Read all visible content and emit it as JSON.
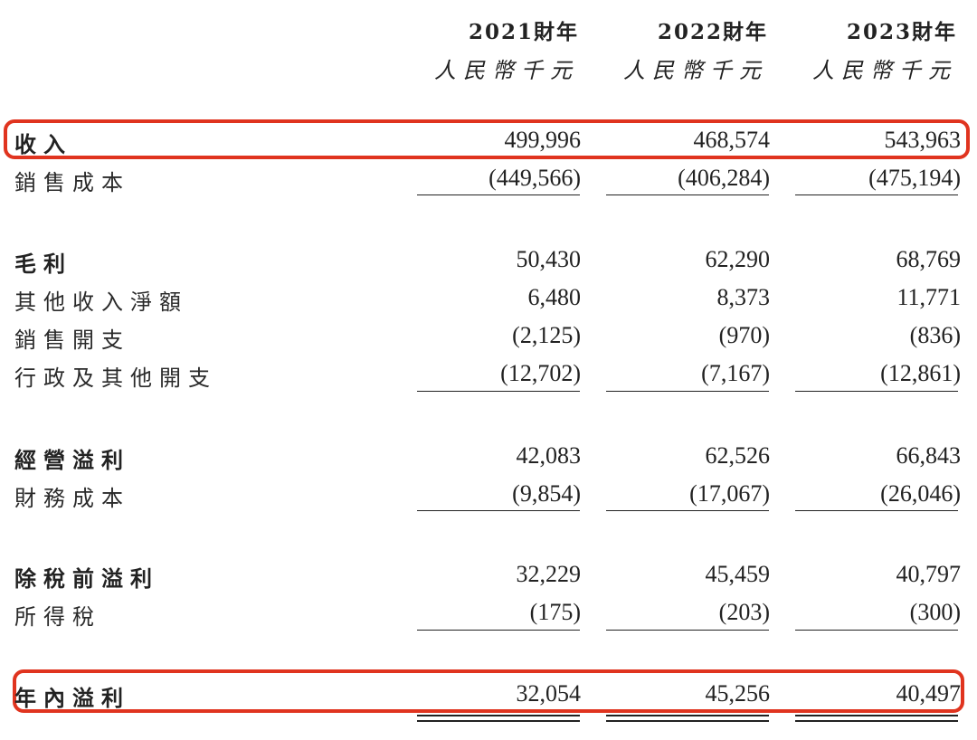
{
  "headers": [
    {
      "year": "2021財年",
      "unit": "人民幣千元"
    },
    {
      "year": "2022財年",
      "unit": "人民幣千元"
    },
    {
      "year": "2023財年",
      "unit": "人民幣千元"
    }
  ],
  "rows": [
    {
      "label": "收入",
      "values": [
        "499,996",
        "468,574",
        "543,963"
      ],
      "bold": true
    },
    {
      "label": "銷售成本",
      "values": [
        "(449,566)",
        "(406,284)",
        "(475,194)"
      ],
      "bold": false
    },
    {
      "label": "毛利",
      "values": [
        "50,430",
        "62,290",
        "68,769"
      ],
      "bold": true
    },
    {
      "label": "其他收入淨額",
      "values": [
        "6,480",
        "8,373",
        "11,771"
      ],
      "bold": false
    },
    {
      "label": "銷售開支",
      "values": [
        "(2,125)",
        "(970)",
        "(836)"
      ],
      "bold": false
    },
    {
      "label": "行政及其他開支",
      "values": [
        "(12,702)",
        "(7,167)",
        "(12,861)"
      ],
      "bold": false
    },
    {
      "label": "經營溢利",
      "values": [
        "42,083",
        "62,526",
        "66,843"
      ],
      "bold": true
    },
    {
      "label": "財務成本",
      "values": [
        "(9,854)",
        "(17,067)",
        "(26,046)"
      ],
      "bold": false
    },
    {
      "label": "除稅前溢利",
      "values": [
        "32,229",
        "45,459",
        "40,797"
      ],
      "bold": true
    },
    {
      "label": "所得稅",
      "values": [
        "(175)",
        "(203)",
        "(300)"
      ],
      "bold": false
    },
    {
      "label": "年內溢利",
      "values": [
        "32,054",
        "45,256",
        "40,497"
      ],
      "bold": true
    }
  ],
  "colors": {
    "highlight": "#e0341f",
    "text": "#222222"
  }
}
